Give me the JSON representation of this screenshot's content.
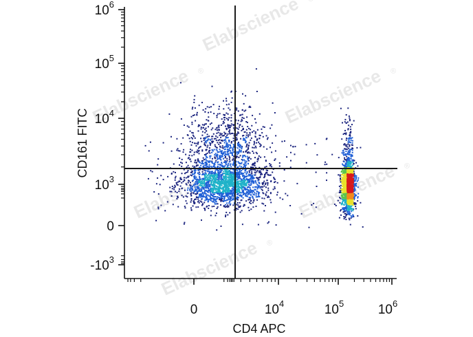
{
  "chart_data": {
    "type": "scatter",
    "title": "",
    "xlabel": "CD4 APC",
    "ylabel": "CD161 FITC",
    "x_scale": "biexponential",
    "y_scale": "biexponential",
    "xlim": [
      -1500,
      1000000
    ],
    "ylim": [
      -2000,
      1000000
    ],
    "x_ticks": [
      {
        "value": 0,
        "base": "0",
        "exp": ""
      },
      {
        "value": 10000,
        "base": "10",
        "exp": "4"
      },
      {
        "value": 100000,
        "base": "10",
        "exp": "5"
      },
      {
        "value": 1000000,
        "base": "10",
        "exp": "6"
      }
    ],
    "y_ticks": [
      {
        "value": 1000000,
        "base": "10",
        "exp": "6"
      },
      {
        "value": 100000,
        "base": "10",
        "exp": "5"
      },
      {
        "value": 10000,
        "base": "10",
        "exp": "4"
      },
      {
        "value": 1000,
        "base": "10",
        "exp": "3"
      },
      {
        "value": 0,
        "base": "0",
        "exp": ""
      },
      {
        "value": -1000,
        "base": "-10",
        "exp": "3"
      }
    ],
    "quadrant_gate": {
      "x": 2500,
      "y": 1900
    },
    "populations": [
      {
        "center_x": 300,
        "center_y": 950,
        "spread_x": 0.55,
        "spread_y": 0.22,
        "density": "high"
      },
      {
        "center_x": 400,
        "center_y": 4000,
        "spread_x": 0.55,
        "spread_y": 0.45,
        "density": "medium"
      },
      {
        "center_x": 150000,
        "center_y": 800,
        "spread_x": 0.12,
        "spread_y": 0.25,
        "density": "high"
      },
      {
        "center_x": 150000,
        "center_y": 4000,
        "spread_x": 0.1,
        "spread_y": 0.35,
        "density": "low"
      }
    ],
    "grid": false,
    "legend": "none",
    "colormap": [
      "#1a237e",
      "#1f5fd6",
      "#1fb2c9",
      "#5cc44a",
      "#e8e02b",
      "#f28a1b",
      "#d7191c"
    ]
  },
  "watermark": {
    "text": "Elabscience",
    "mark": "®"
  }
}
